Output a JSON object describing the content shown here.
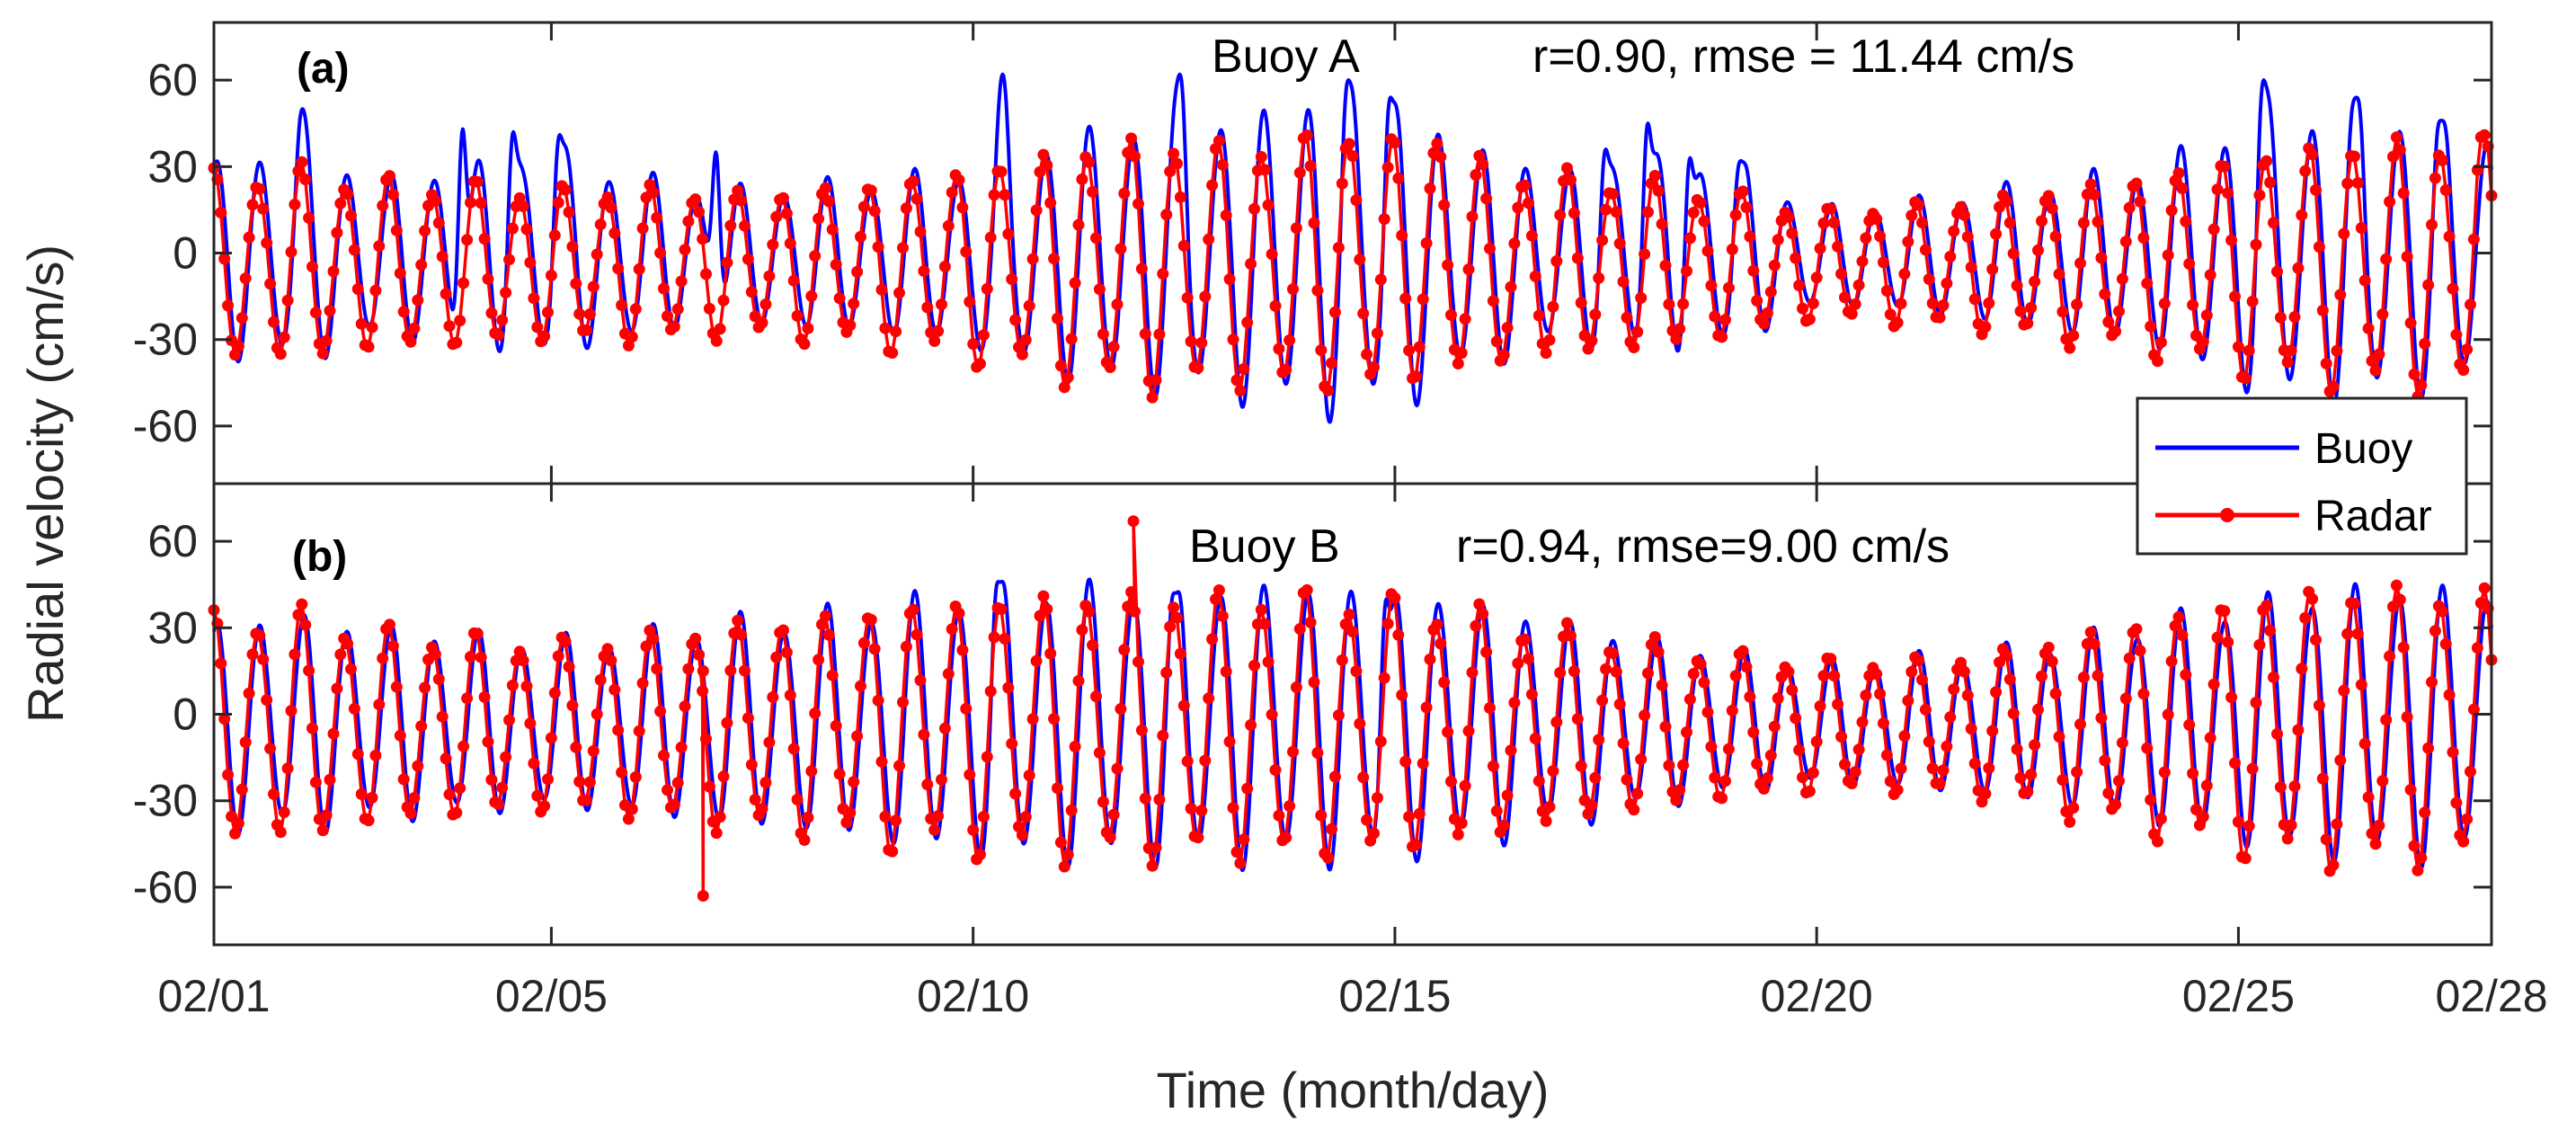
{
  "chart_data": [
    {
      "type": "line",
      "panel_label": "(a)",
      "annotation_station": "Buoy A",
      "annotation_stats": "r=0.90, rmse = 11.44 cm/s",
      "stats": {
        "r": 0.9,
        "rmse_cm_s": 11.44
      },
      "xlim_day": [
        1,
        28
      ],
      "ylim": [
        -80,
        80
      ],
      "yticks": [
        "60",
        "30",
        "0",
        "-30",
        "-60"
      ],
      "ytick_values": [
        60,
        30,
        0,
        -30,
        -60
      ],
      "series": [
        {
          "name": "Buoy",
          "color": "#0000ff",
          "style": "line",
          "amp_days": [
            1,
            2,
            3,
            4,
            5,
            6,
            7,
            8,
            9,
            10,
            11,
            12,
            13,
            14,
            15,
            16,
            17,
            18,
            19,
            20,
            21,
            22,
            23,
            24,
            25,
            26,
            27,
            28
          ],
          "amp_cm_s": [
            32,
            35,
            26,
            30,
            33,
            27,
            22,
            24,
            26,
            30,
            40,
            44,
            46,
            52,
            50,
            36,
            28,
            32,
            30,
            16,
            18,
            22,
            26,
            30,
            44,
            48,
            46,
            40
          ],
          "offset_cm_s": -1,
          "peaks": [
            [
              2.05,
              50
            ],
            [
              3.95,
              43
            ],
            [
              4.55,
              42
            ],
            [
              5.1,
              41
            ],
            [
              6.95,
              35
            ],
            [
              10.35,
              62
            ],
            [
              12.45,
              62
            ],
            [
              14.45,
              60
            ],
            [
              14.95,
              54
            ],
            [
              17.5,
              36
            ],
            [
              18.0,
              45
            ],
            [
              18.5,
              33
            ],
            [
              19.1,
              32
            ],
            [
              25.3,
              60
            ],
            [
              26.4,
              54
            ],
            [
              27.4,
              46
            ]
          ]
        },
        {
          "name": "Radar",
          "color": "#ff0000",
          "style": "line-marker",
          "amp_days": [
            1,
            2,
            3,
            4,
            5,
            6,
            7,
            8,
            9,
            10,
            11,
            12,
            13,
            14,
            15,
            16,
            17,
            18,
            19,
            20,
            21,
            22,
            23,
            24,
            25,
            26,
            27,
            28
          ],
          "amp_cm_s": [
            30,
            32,
            28,
            27,
            25,
            26,
            24,
            25,
            28,
            32,
            38,
            42,
            40,
            42,
            40,
            34,
            30,
            28,
            24,
            18,
            20,
            22,
            26,
            30,
            36,
            40,
            42,
            40
          ],
          "offset_cm_s": -4,
          "peaks": [
            [
              15.5,
              38
            ],
            [
              14.45,
              38
            ],
            [
              27.9,
              41
            ]
          ]
        }
      ]
    },
    {
      "type": "line",
      "panel_label": "(b)",
      "annotation_station": "Buoy B",
      "annotation_stats": "r=0.94, rmse=9.00 cm/s",
      "stats": {
        "r": 0.94,
        "rmse_cm_s": 9.0
      },
      "xlim_day": [
        1,
        28
      ],
      "ylim": [
        -80,
        80
      ],
      "yticks": [
        "60",
        "30",
        "0",
        "-30",
        "-60"
      ],
      "ytick_values": [
        60,
        30,
        0,
        -30,
        -60
      ],
      "series": [
        {
          "name": "Buoy",
          "color": "#0000ff",
          "style": "line",
          "amp_days": [
            1,
            2,
            3,
            4,
            5,
            6,
            7,
            8,
            9,
            10,
            11,
            12,
            13,
            14,
            15,
            16,
            17,
            18,
            19,
            20,
            21,
            22,
            23,
            24,
            25,
            26,
            27,
            28
          ],
          "amp_cm_s": [
            34,
            36,
            32,
            30,
            28,
            30,
            34,
            36,
            40,
            44,
            46,
            46,
            46,
            46,
            44,
            40,
            34,
            28,
            24,
            20,
            22,
            24,
            28,
            34,
            40,
            44,
            46,
            44
          ],
          "offset_cm_s": -3,
          "peaks": [
            [
              10.3,
              46
            ],
            [
              12.4,
              42
            ],
            [
              14.9,
              40
            ]
          ]
        },
        {
          "name": "Radar",
          "color": "#ff0000",
          "style": "line-marker",
          "amp_days": [
            1,
            2,
            3,
            4,
            5,
            6,
            7,
            8,
            9,
            10,
            11,
            12,
            13,
            14,
            15,
            16,
            17,
            18,
            19,
            20,
            21,
            22,
            23,
            24,
            25,
            26,
            27,
            28
          ],
          "amp_cm_s": [
            36,
            38,
            32,
            30,
            28,
            30,
            34,
            36,
            40,
            42,
            44,
            44,
            44,
            44,
            42,
            38,
            32,
            28,
            24,
            22,
            22,
            24,
            30,
            36,
            42,
            46,
            46,
            44
          ],
          "offset_cm_s": -4,
          "spikes": [
            [
              11.9,
              67
            ],
            [
              6.8,
              -63
            ],
            [
              6.8,
              15
            ]
          ]
        }
      ]
    }
  ],
  "shared": {
    "ylabel": "Radial velocity (cm/s)",
    "xlabel": "Time (month/day)",
    "xticks": [
      "02/01",
      "02/05",
      "02/10",
      "02/15",
      "02/20",
      "02/25",
      "02/28"
    ],
    "xtick_days": [
      1,
      5,
      10,
      15,
      20,
      25,
      28
    ],
    "legend": [
      {
        "label": "Buoy",
        "color": "#0000ff"
      },
      {
        "label": "Radar",
        "color": "#ff0000"
      }
    ],
    "legend_placement": "right, between panels"
  }
}
